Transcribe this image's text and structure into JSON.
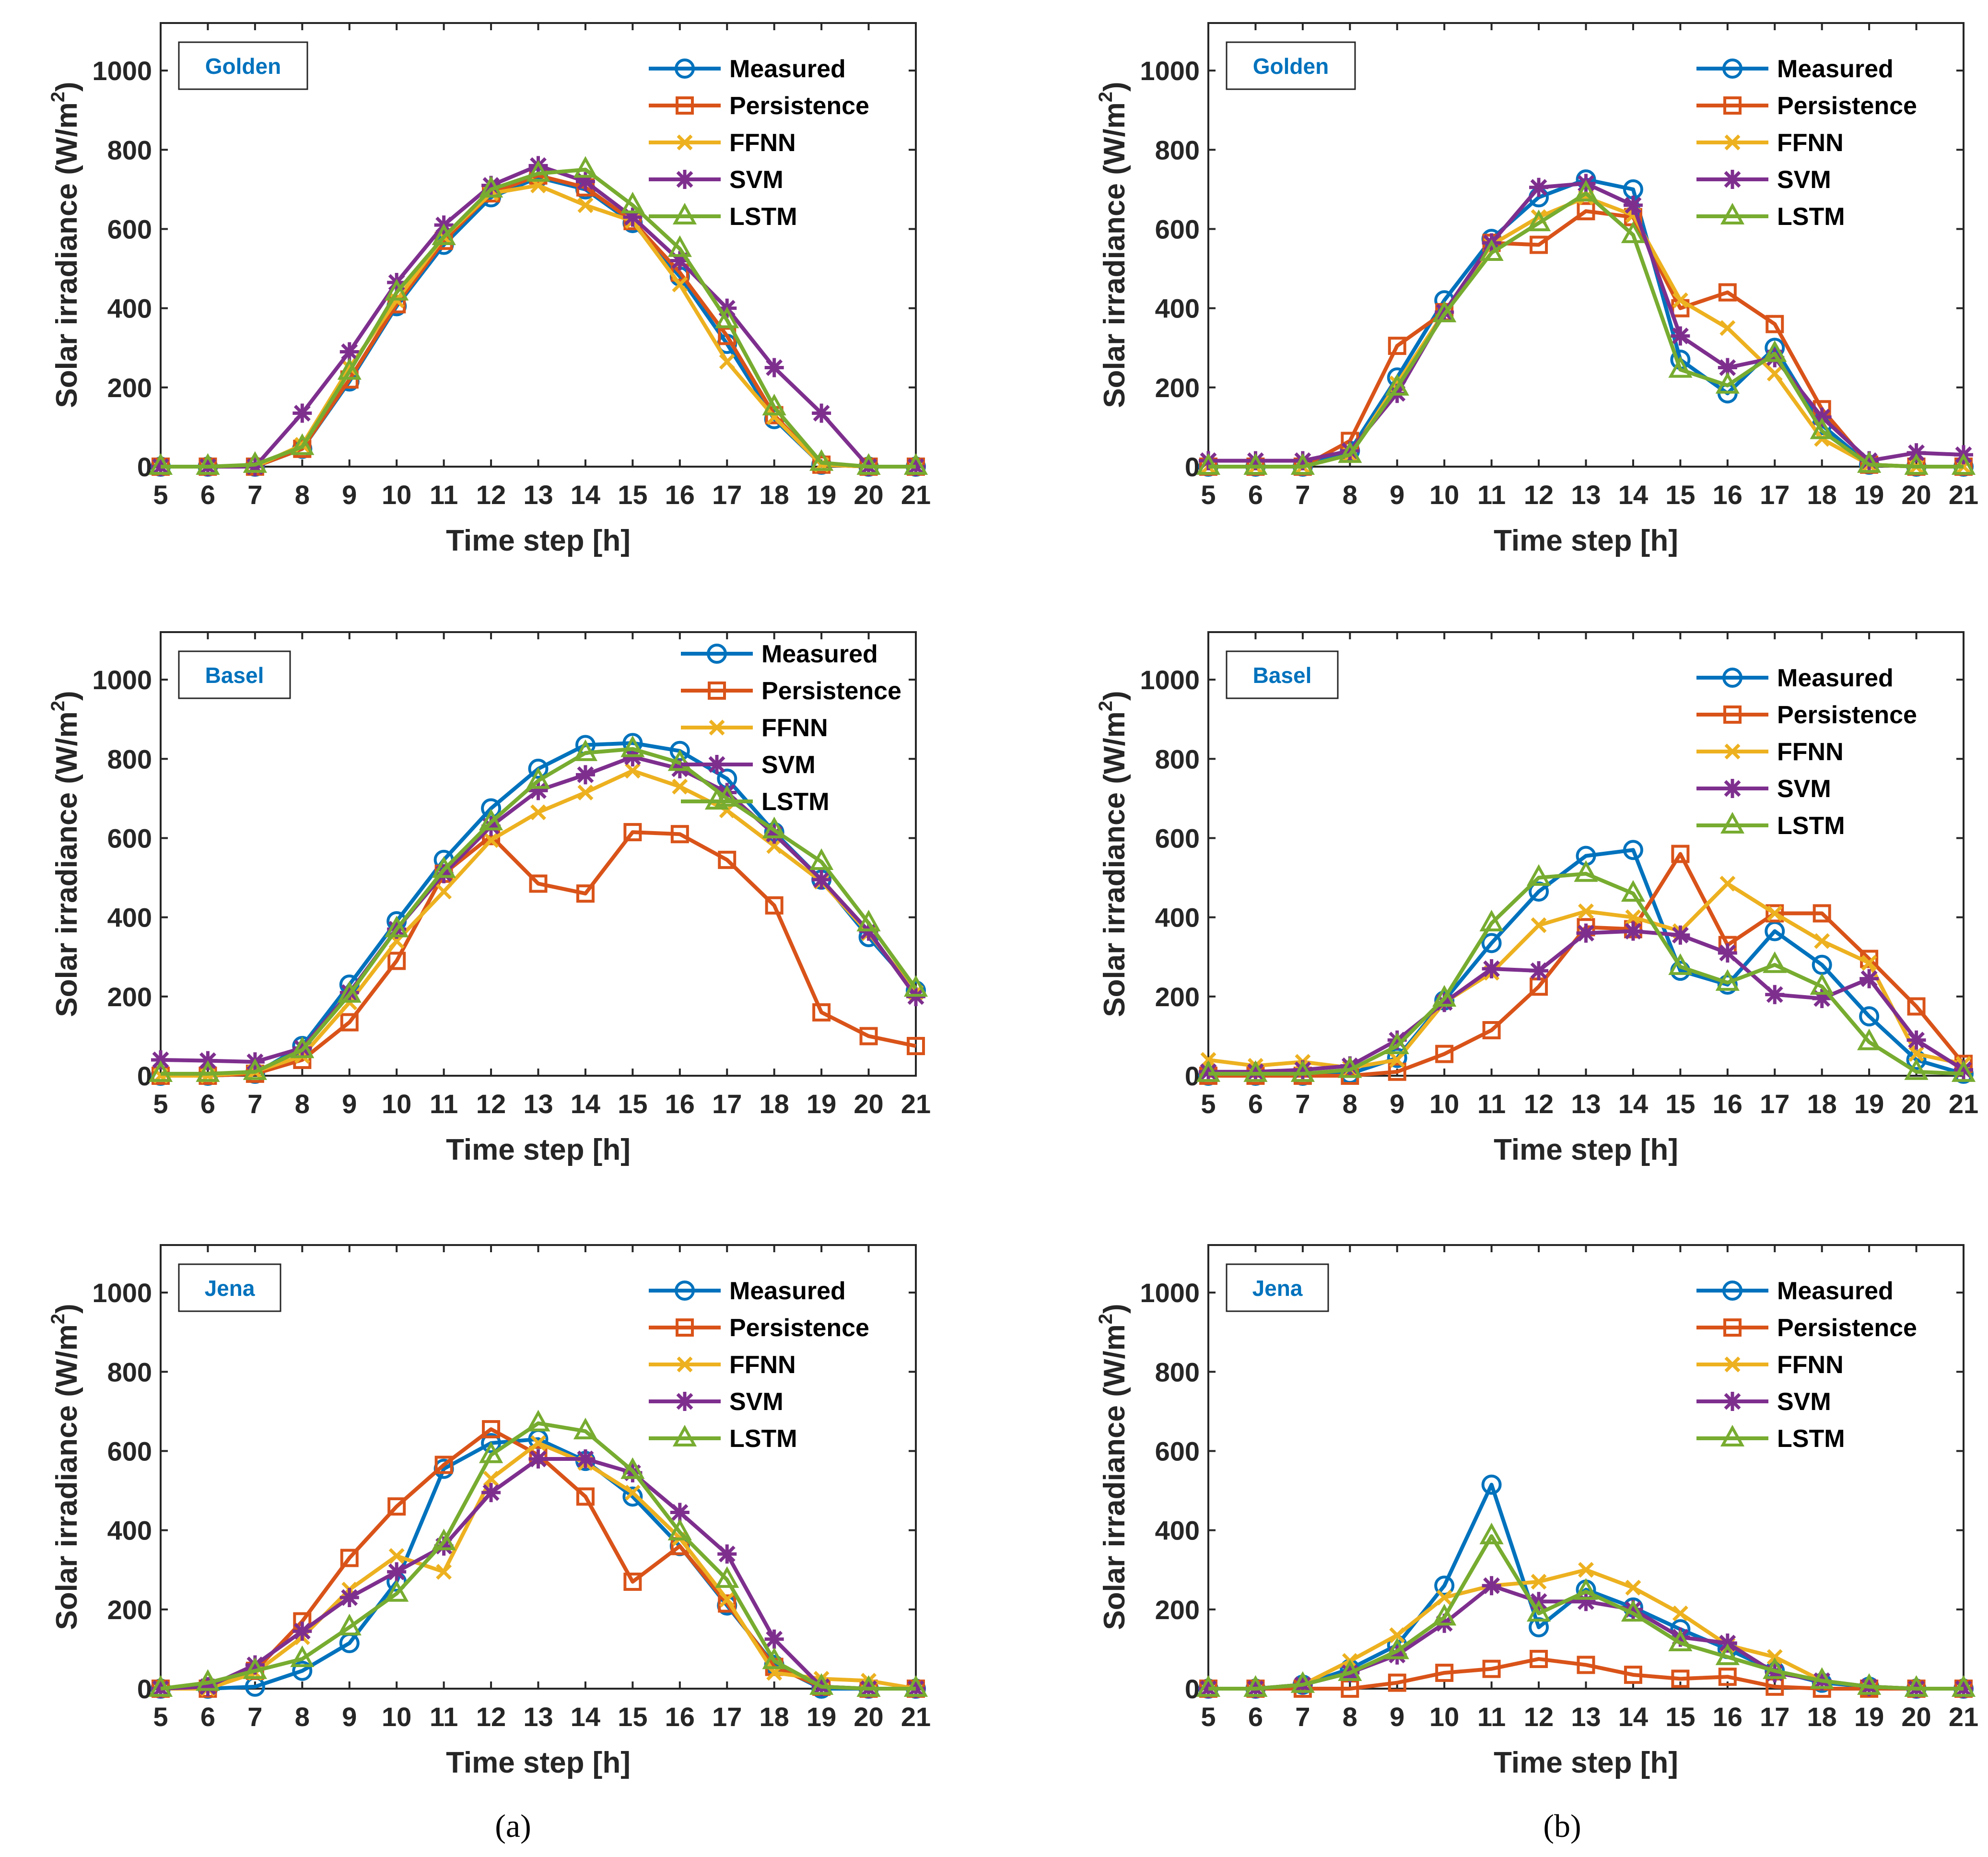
{
  "colors": {
    "Measured": "#0072BD",
    "Persistence": "#D95319",
    "FFNN": "#EDB120",
    "SVM": "#7E2F8E",
    "LSTM": "#77AC30"
  },
  "markers": {
    "Measured": "circle",
    "Persistence": "square",
    "FFNN": "x",
    "SVM": "asterisk",
    "LSTM": "triangle"
  },
  "captions": [
    "(a)",
    "(b)"
  ],
  "chart_data": [
    {
      "type": "line",
      "column": "a",
      "site": "Golden",
      "xlabel": "Time step [h]",
      "ylabel": "Solar irradiance (W/m",
      "ylabel_superscript": "2",
      "ylabel_suffix": ")",
      "xlim": [
        5,
        21
      ],
      "ylim": [
        0,
        1120
      ],
      "x": [
        5,
        6,
        7,
        8,
        9,
        10,
        11,
        12,
        13,
        14,
        15,
        16,
        17,
        18,
        19,
        20,
        21
      ],
      "yticks": [
        0,
        200,
        400,
        600,
        800,
        1000
      ],
      "legend": [
        "Measured",
        "Persistence",
        "FFNN",
        "SVM",
        "LSTM"
      ],
      "series": [
        {
          "name": "Measured",
          "values": [
            0,
            0,
            0,
            45,
            215,
            405,
            560,
            680,
            730,
            700,
            615,
            480,
            310,
            120,
            5,
            0,
            0
          ]
        },
        {
          "name": "Persistence",
          "values": [
            0,
            0,
            0,
            45,
            220,
            410,
            570,
            690,
            735,
            705,
            620,
            490,
            330,
            130,
            5,
            0,
            0
          ]
        },
        {
          "name": "FFNN",
          "values": [
            0,
            0,
            0,
            55,
            250,
            420,
            580,
            690,
            710,
            660,
            620,
            460,
            265,
            125,
            5,
            0,
            0
          ]
        },
        {
          "name": "SVM",
          "values": [
            0,
            0,
            0,
            135,
            290,
            465,
            610,
            710,
            760,
            720,
            630,
            520,
            400,
            250,
            135,
            0,
            0
          ]
        },
        {
          "name": "LSTM",
          "values": [
            0,
            0,
            5,
            50,
            240,
            440,
            580,
            700,
            740,
            750,
            660,
            550,
            370,
            150,
            10,
            0,
            0
          ]
        }
      ]
    },
    {
      "type": "line",
      "column": "b",
      "site": "Golden",
      "xlabel": "Time step [h]",
      "ylabel": "Solar irradiance (W/m",
      "ylabel_superscript": "2",
      "ylabel_suffix": ")",
      "xlim": [
        5,
        21
      ],
      "ylim": [
        0,
        1120
      ],
      "x": [
        5,
        6,
        7,
        8,
        9,
        10,
        11,
        12,
        13,
        14,
        15,
        16,
        17,
        18,
        19,
        20,
        21
      ],
      "yticks": [
        0,
        200,
        400,
        600,
        800,
        1000
      ],
      "legend": [
        "Measured",
        "Persistence",
        "FFNN",
        "SVM",
        "LSTM"
      ],
      "series": [
        {
          "name": "Measured",
          "values": [
            0,
            0,
            0,
            40,
            225,
            420,
            575,
            680,
            725,
            700,
            270,
            185,
            300,
            105,
            5,
            0,
            0
          ]
        },
        {
          "name": "Persistence",
          "values": [
            0,
            0,
            0,
            65,
            305,
            390,
            565,
            560,
            645,
            630,
            400,
            440,
            360,
            145,
            5,
            0,
            0
          ]
        },
        {
          "name": "FFNN",
          "values": [
            0,
            0,
            0,
            30,
            210,
            390,
            560,
            630,
            680,
            635,
            420,
            350,
            235,
            70,
            5,
            0,
            0
          ]
        },
        {
          "name": "SVM",
          "values": [
            15,
            15,
            15,
            40,
            185,
            390,
            565,
            705,
            715,
            660,
            330,
            250,
            275,
            125,
            15,
            35,
            30
          ]
        },
        {
          "name": "LSTM",
          "values": [
            0,
            0,
            0,
            30,
            200,
            385,
            540,
            615,
            690,
            585,
            245,
            205,
            285,
            90,
            5,
            0,
            0
          ]
        }
      ]
    },
    {
      "type": "line",
      "column": "a",
      "site": "Basel",
      "xlabel": "Time step [h]",
      "ylabel": "Solar irradiance (W/m",
      "ylabel_superscript": "2",
      "ylabel_suffix": ")",
      "xlim": [
        5,
        21
      ],
      "ylim": [
        0,
        1120
      ],
      "x": [
        5,
        6,
        7,
        8,
        9,
        10,
        11,
        12,
        13,
        14,
        15,
        16,
        17,
        18,
        19,
        20,
        21
      ],
      "yticks": [
        0,
        200,
        400,
        600,
        800,
        1000
      ],
      "legend": [
        "Measured",
        "Persistence",
        "FFNN",
        "SVM",
        "LSTM"
      ],
      "series": [
        {
          "name": "Measured",
          "values": [
            0,
            0,
            5,
            75,
            230,
            390,
            545,
            675,
            775,
            835,
            840,
            820,
            750,
            615,
            495,
            350,
            215
          ]
        },
        {
          "name": "Persistence",
          "values": [
            0,
            0,
            5,
            40,
            135,
            290,
            510,
            605,
            485,
            460,
            615,
            610,
            545,
            430,
            160,
            100,
            75
          ]
        },
        {
          "name": "FFNN",
          "values": [
            0,
            0,
            10,
            50,
            185,
            340,
            465,
            595,
            665,
            715,
            770,
            730,
            670,
            580,
            490,
            360,
            210
          ]
        },
        {
          "name": "SVM",
          "values": [
            40,
            38,
            35,
            70,
            210,
            370,
            510,
            630,
            720,
            760,
            805,
            775,
            715,
            610,
            495,
            365,
            200
          ]
        },
        {
          "name": "LSTM",
          "values": [
            5,
            5,
            10,
            65,
            205,
            370,
            520,
            640,
            745,
            815,
            825,
            790,
            700,
            620,
            540,
            385,
            220
          ]
        }
      ]
    },
    {
      "type": "line",
      "column": "b",
      "site": "Basel",
      "xlabel": "Time step [h]",
      "ylabel": "Solar irradiance (W/m",
      "ylabel_superscript": "2",
      "ylabel_suffix": ")",
      "xlim": [
        5,
        21
      ],
      "ylim": [
        0,
        1120
      ],
      "x": [
        5,
        6,
        7,
        8,
        9,
        10,
        11,
        12,
        13,
        14,
        15,
        16,
        17,
        18,
        19,
        20,
        21
      ],
      "yticks": [
        0,
        200,
        400,
        600,
        800,
        1000
      ],
      "legend": [
        "Measured",
        "Persistence",
        "FFNN",
        "SVM",
        "LSTM"
      ],
      "series": [
        {
          "name": "Measured",
          "values": [
            0,
            0,
            0,
            5,
            45,
            190,
            335,
            465,
            555,
            570,
            265,
            230,
            365,
            280,
            150,
            40,
            5
          ]
        },
        {
          "name": "Persistence",
          "values": [
            0,
            0,
            0,
            0,
            10,
            55,
            115,
            225,
            375,
            370,
            560,
            330,
            410,
            410,
            295,
            175,
            30
          ]
        },
        {
          "name": "FFNN",
          "values": [
            40,
            25,
            35,
            20,
            40,
            185,
            260,
            380,
            415,
            400,
            365,
            485,
            410,
            340,
            285,
            55,
            30
          ]
        },
        {
          "name": "SVM",
          "values": [
            10,
            10,
            15,
            25,
            90,
            185,
            270,
            265,
            360,
            365,
            355,
            310,
            205,
            195,
            245,
            90,
            15
          ]
        },
        {
          "name": "LSTM",
          "values": [
            5,
            5,
            5,
            15,
            75,
            195,
            385,
            500,
            510,
            460,
            275,
            235,
            280,
            225,
            85,
            10,
            5
          ]
        }
      ]
    },
    {
      "type": "line",
      "column": "a",
      "site": "Jena",
      "xlabel": "Time step [h]",
      "ylabel": "Solar irradiance (W/m",
      "ylabel_superscript": "2",
      "ylabel_suffix": ")",
      "xlim": [
        5,
        21
      ],
      "ylim": [
        0,
        1120
      ],
      "x": [
        5,
        6,
        7,
        8,
        9,
        10,
        11,
        12,
        13,
        14,
        15,
        16,
        17,
        18,
        19,
        20,
        21
      ],
      "yticks": [
        0,
        200,
        400,
        600,
        800,
        1000
      ],
      "legend": [
        "Measured",
        "Persistence",
        "FFNN",
        "SVM",
        "LSTM"
      ],
      "series": [
        {
          "name": "Measured",
          "values": [
            0,
            0,
            5,
            45,
            115,
            270,
            555,
            620,
            630,
            575,
            485,
            360,
            210,
            60,
            0,
            0,
            0
          ]
        },
        {
          "name": "Persistence",
          "values": [
            0,
            0,
            45,
            170,
            330,
            460,
            565,
            655,
            590,
            485,
            270,
            360,
            215,
            55,
            5,
            0,
            0
          ]
        },
        {
          "name": "FFNN",
          "values": [
            0,
            0,
            40,
            130,
            250,
            335,
            295,
            530,
            620,
            570,
            495,
            380,
            225,
            40,
            25,
            20,
            0
          ]
        },
        {
          "name": "SVM",
          "values": [
            0,
            5,
            60,
            145,
            230,
            295,
            360,
            495,
            580,
            580,
            545,
            445,
            340,
            125,
            5,
            0,
            0
          ]
        },
        {
          "name": "LSTM",
          "values": [
            0,
            15,
            45,
            75,
            155,
            240,
            370,
            590,
            670,
            650,
            550,
            395,
            275,
            70,
            5,
            0,
            0
          ]
        }
      ]
    },
    {
      "type": "line",
      "column": "b",
      "site": "Jena",
      "xlabel": "Time step [h]",
      "ylabel": "Solar irradiance (W/m",
      "ylabel_superscript": "2",
      "ylabel_suffix": ")",
      "xlim": [
        5,
        21
      ],
      "ylim": [
        0,
        1120
      ],
      "x": [
        5,
        6,
        7,
        8,
        9,
        10,
        11,
        12,
        13,
        14,
        15,
        16,
        17,
        18,
        19,
        20,
        21
      ],
      "yticks": [
        0,
        200,
        400,
        600,
        800,
        1000
      ],
      "legend": [
        "Measured",
        "Persistence",
        "FFNN",
        "SVM",
        "LSTM"
      ],
      "series": [
        {
          "name": "Measured",
          "values": [
            0,
            0,
            10,
            50,
            110,
            260,
            515,
            155,
            250,
            205,
            150,
            100,
            45,
            15,
            5,
            0,
            0
          ]
        },
        {
          "name": "Persistence",
          "values": [
            0,
            0,
            0,
            0,
            15,
            40,
            50,
            75,
            60,
            35,
            25,
            30,
            5,
            0,
            0,
            0,
            0
          ]
        },
        {
          "name": "FFNN",
          "values": [
            0,
            0,
            10,
            70,
            135,
            230,
            260,
            270,
            300,
            255,
            190,
            110,
            80,
            20,
            5,
            0,
            0
          ]
        },
        {
          "name": "SVM",
          "values": [
            0,
            0,
            10,
            40,
            85,
            165,
            260,
            220,
            220,
            200,
            130,
            115,
            40,
            20,
            5,
            0,
            0
          ]
        },
        {
          "name": "LSTM",
          "values": [
            0,
            0,
            10,
            40,
            95,
            180,
            385,
            190,
            245,
            190,
            115,
            80,
            45,
            20,
            5,
            0,
            0
          ]
        }
      ]
    }
  ]
}
